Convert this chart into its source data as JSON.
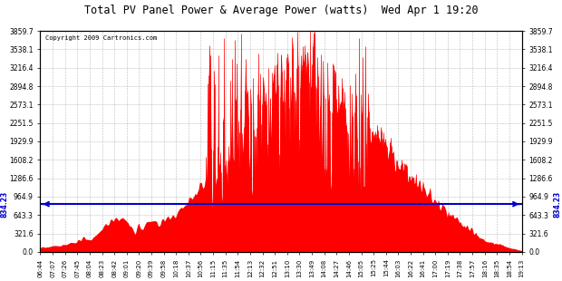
{
  "title": "Total PV Panel Power & Average Power (watts)  Wed Apr 1 19:20",
  "copyright": "Copyright 2009 Cartronics.com",
  "avg_power": 834.23,
  "ymax": 3859.7,
  "yticks": [
    0.0,
    321.6,
    643.3,
    964.9,
    1286.6,
    1608.2,
    1929.9,
    2251.5,
    2573.1,
    2894.8,
    3216.4,
    3538.1,
    3859.7
  ],
  "ytick_labels": [
    "0.0",
    "321.6",
    "643.3",
    "964.9",
    "1286.6",
    "1608.2",
    "1929.9",
    "2251.5",
    "2573.1",
    "2894.8",
    "3216.4",
    "3538.1",
    "3859.7"
  ],
  "xtick_labels": [
    "06:44",
    "07:07",
    "07:26",
    "07:45",
    "08:04",
    "08:23",
    "08:42",
    "09:01",
    "09:20",
    "09:39",
    "09:58",
    "10:18",
    "10:37",
    "10:56",
    "11:15",
    "11:35",
    "11:54",
    "12:13",
    "12:32",
    "12:51",
    "13:10",
    "13:30",
    "13:49",
    "14:08",
    "14:27",
    "14:46",
    "15:05",
    "15:25",
    "15:44",
    "16:03",
    "16:22",
    "16:41",
    "17:00",
    "17:19",
    "17:38",
    "17:57",
    "18:16",
    "18:35",
    "18:54",
    "19:13"
  ],
  "fill_color": "#FF0000",
  "line_color": "#FF0000",
  "avg_line_color": "#0000CC",
  "background_color": "#FFFFFF",
  "grid_color": "#AAAAAA"
}
